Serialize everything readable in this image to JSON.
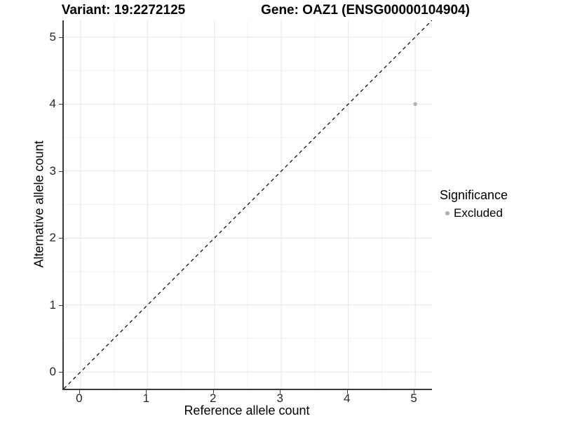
{
  "titles": {
    "variant": "Variant: 19:2272125",
    "gene": "Gene: OAZ1 (ENSG00000104904)"
  },
  "chart_data": {
    "type": "scatter",
    "title": "Variant: 19:2272125  /  Gene: OAZ1 (ENSG00000104904)",
    "xlabel": "Reference allele count",
    "ylabel": "Alternative allele count",
    "xlim": [
      -0.25,
      5.25
    ],
    "ylim": [
      -0.25,
      5.25
    ],
    "x_ticks": [
      0,
      1,
      2,
      3,
      4,
      5
    ],
    "y_ticks": [
      0,
      1,
      2,
      3,
      4,
      5
    ],
    "minor_ticks": [
      0.5,
      1.5,
      2.5,
      3.5,
      4.5
    ],
    "grid": "major+minor",
    "points": [
      {
        "x": 5,
        "y": 4,
        "series": "Excluded"
      }
    ],
    "reference_line": {
      "kind": "identity y=x",
      "style": "dashed",
      "color": "#000000"
    },
    "legend": {
      "title": "Significance",
      "position": "right",
      "entries": [
        {
          "label": "Excluded",
          "marker": "circle",
          "color": "#b0b0b0"
        }
      ]
    }
  },
  "colors": {
    "background": "#ffffff",
    "axis_line": "#3a3a3a",
    "major_grid": "#e6e6e6",
    "minor_grid": "#f2f2f2",
    "point": "#b0b0b0",
    "reference_line": "#000000"
  }
}
